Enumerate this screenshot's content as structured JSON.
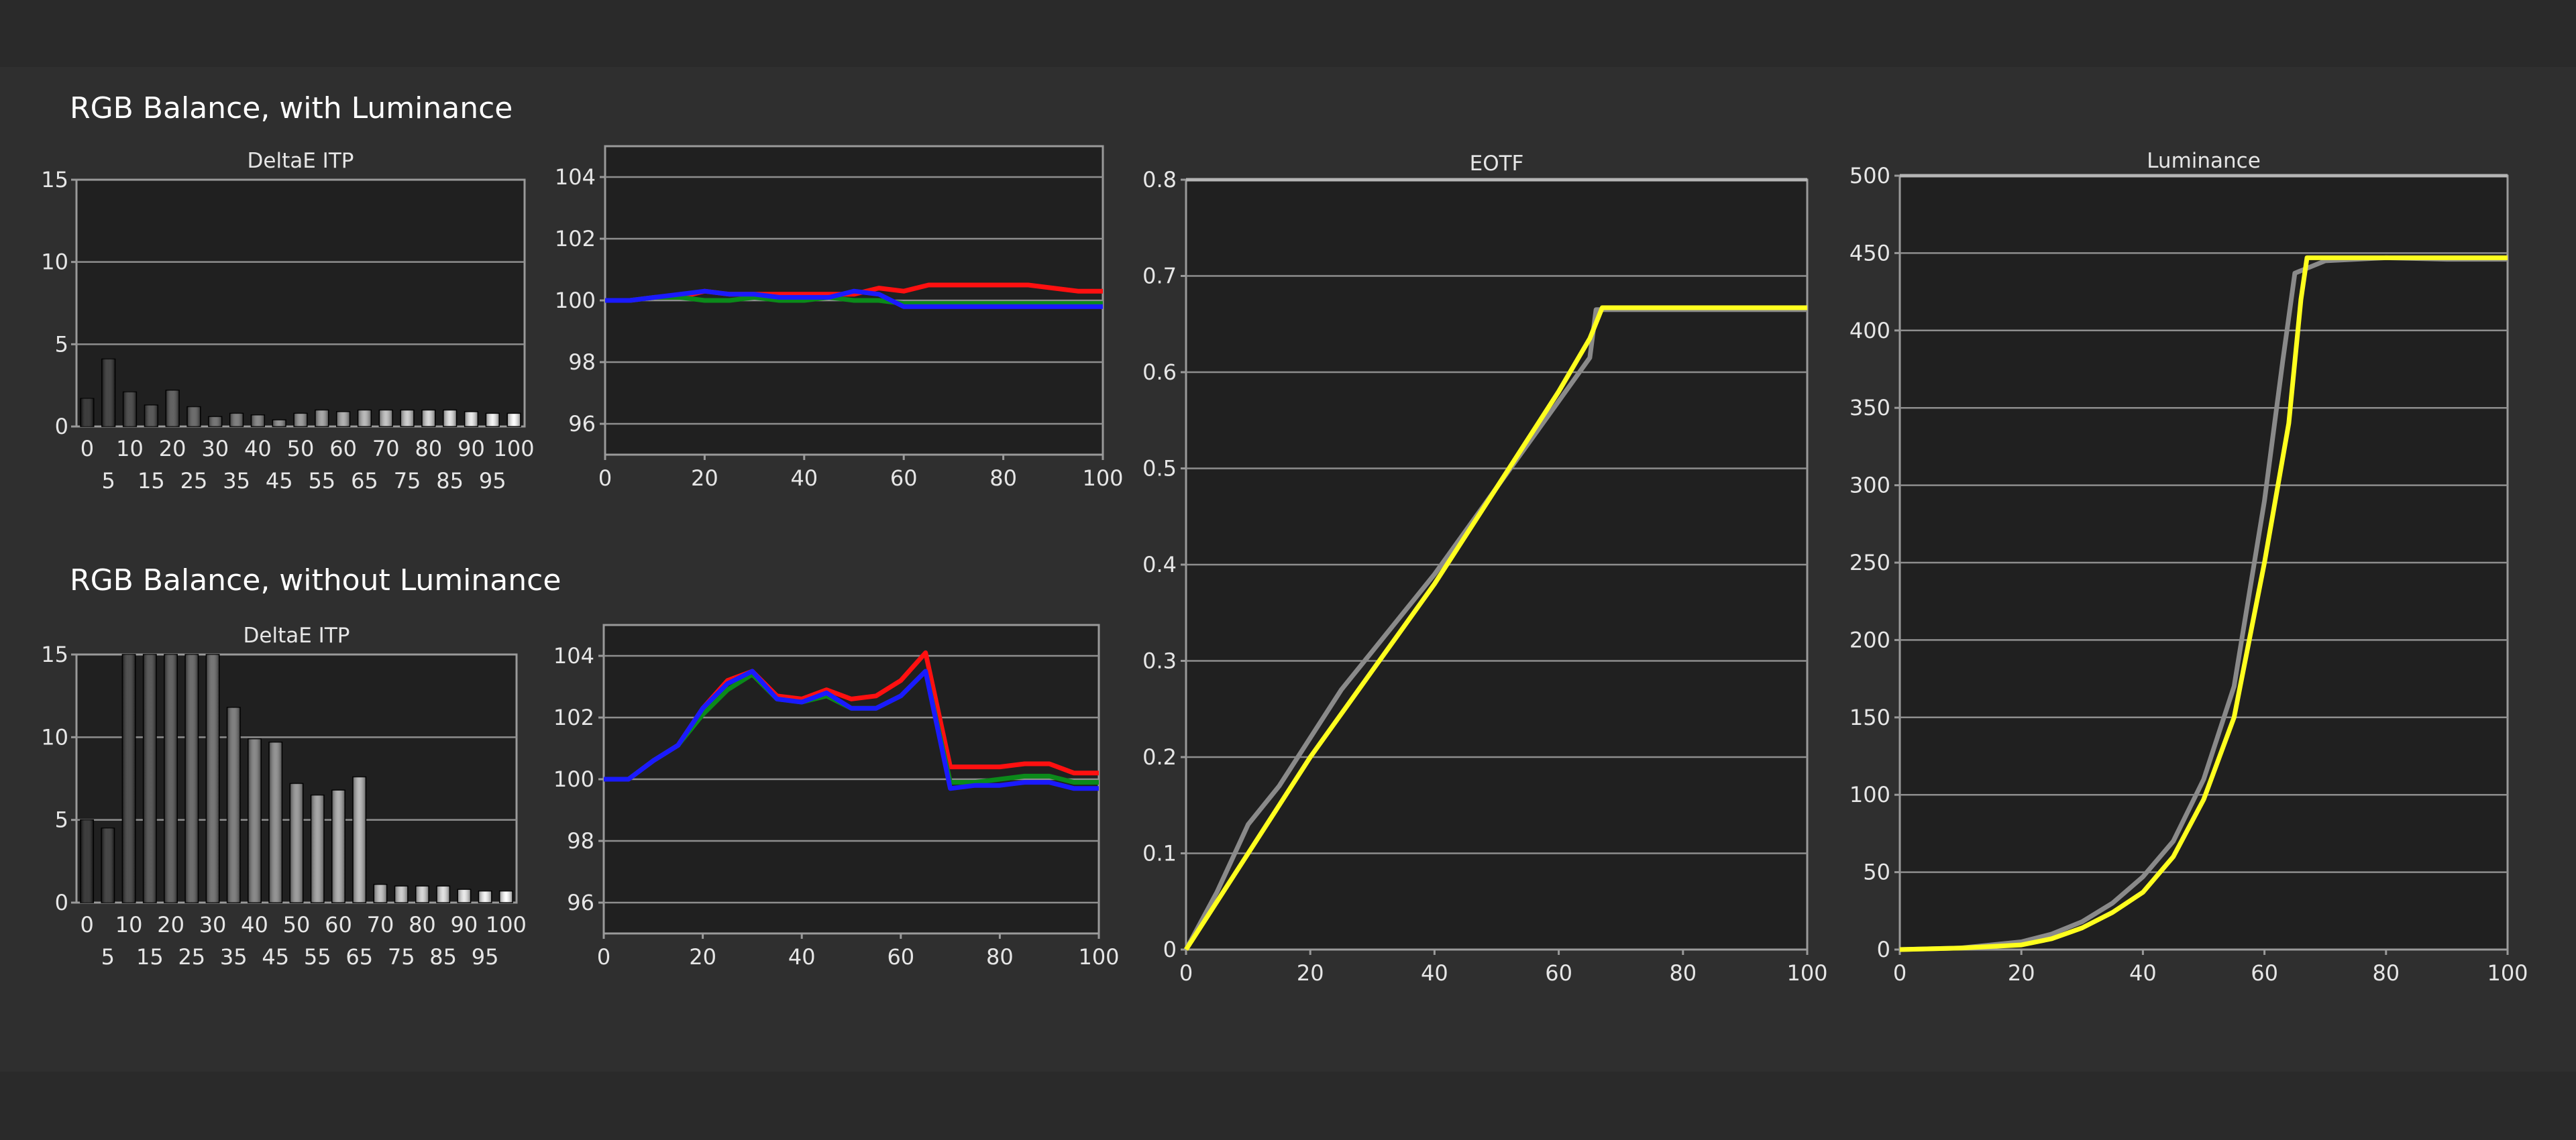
{
  "page": {
    "section_top_title": "RGB Balance, with Luminance",
    "section_bottom_title": "RGB Balance, without Luminance"
  },
  "colors": {
    "red": "#ff1010",
    "green": "#0b8a1a",
    "blue": "#1a1aff",
    "yellow": "#ffff1e",
    "gray": "#8a8a8a"
  },
  "chart_data": [
    {
      "id": "deltae-with",
      "type": "bar",
      "title": "DeltaE ITP",
      "categories": [
        "0",
        "5",
        "10",
        "15",
        "20",
        "25",
        "30",
        "35",
        "40",
        "45",
        "50",
        "55",
        "60",
        "65",
        "70",
        "75",
        "80",
        "85",
        "90",
        "95",
        "100"
      ],
      "values": [
        1.7,
        4.1,
        2.1,
        1.3,
        2.2,
        1.2,
        0.6,
        0.8,
        0.7,
        0.4,
        0.8,
        1.0,
        0.9,
        1.0,
        1.0,
        1.0,
        1.0,
        1.0,
        0.9,
        0.8,
        0.8
      ],
      "ylim": [
        0,
        15
      ],
      "yticks": [
        "0",
        "5",
        "10",
        "15"
      ],
      "xticks_row1": [
        "0",
        "10",
        "20",
        "30",
        "40",
        "50",
        "60",
        "70",
        "80",
        "90",
        "100"
      ],
      "xticks_row2": [
        "5",
        "15",
        "25",
        "35",
        "45",
        "55",
        "65",
        "75",
        "85",
        "95"
      ]
    },
    {
      "id": "rgb-with",
      "type": "line",
      "xlim": [
        0,
        100
      ],
      "ylim": [
        95,
        105
      ],
      "xticks": [
        "0",
        "20",
        "40",
        "60",
        "80",
        "100"
      ],
      "yticks": [
        "96",
        "98",
        "100",
        "102",
        "104"
      ],
      "x": [
        0,
        5,
        10,
        15,
        20,
        25,
        30,
        35,
        40,
        45,
        50,
        55,
        60,
        65,
        70,
        75,
        80,
        85,
        90,
        95,
        100
      ],
      "series": [
        {
          "color": "red",
          "values": [
            100,
            100,
            100.1,
            100.1,
            100.3,
            100.2,
            100.2,
            100.2,
            100.2,
            100.2,
            100.2,
            100.4,
            100.3,
            100.5,
            100.5,
            100.5,
            100.5,
            100.5,
            100.4,
            100.3,
            100.3
          ]
        },
        {
          "color": "green",
          "values": [
            100,
            100,
            100.1,
            100.1,
            100,
            100,
            100.1,
            100,
            100,
            100.1,
            100,
            100,
            99.9,
            99.9,
            99.9,
            99.9,
            99.9,
            99.9,
            99.9,
            99.9,
            99.9
          ]
        },
        {
          "color": "blue",
          "values": [
            100,
            100,
            100.1,
            100.2,
            100.3,
            100.2,
            100.2,
            100.1,
            100.1,
            100.1,
            100.3,
            100.2,
            99.8,
            99.8,
            99.8,
            99.8,
            99.8,
            99.8,
            99.8,
            99.8,
            99.8
          ]
        }
      ]
    },
    {
      "id": "deltae-without",
      "type": "bar",
      "title": "DeltaE ITP",
      "categories": [
        "0",
        "5",
        "10",
        "15",
        "20",
        "25",
        "30",
        "35",
        "40",
        "45",
        "50",
        "55",
        "60",
        "65",
        "70",
        "75",
        "80",
        "85",
        "90",
        "95",
        "100"
      ],
      "values": [
        5.0,
        4.5,
        15,
        15,
        15,
        15,
        15,
        11.8,
        9.9,
        9.7,
        7.2,
        6.5,
        6.8,
        7.6,
        1.1,
        1.0,
        1.0,
        1.0,
        0.8,
        0.7,
        0.7
      ],
      "ylim": [
        0,
        15
      ],
      "yticks": [
        "0",
        "5",
        "10",
        "15"
      ],
      "xticks_row1": [
        "0",
        "10",
        "20",
        "30",
        "40",
        "50",
        "60",
        "70",
        "80",
        "90",
        "100"
      ],
      "xticks_row2": [
        "5",
        "15",
        "25",
        "35",
        "45",
        "55",
        "65",
        "75",
        "85",
        "95"
      ]
    },
    {
      "id": "rgb-without",
      "type": "line",
      "xlim": [
        0,
        100
      ],
      "ylim": [
        95,
        105
      ],
      "xticks": [
        "0",
        "20",
        "40",
        "60",
        "80",
        "100"
      ],
      "yticks": [
        "96",
        "98",
        "100",
        "102",
        "104"
      ],
      "x": [
        0,
        5,
        10,
        15,
        20,
        25,
        30,
        35,
        40,
        45,
        50,
        55,
        60,
        65,
        70,
        75,
        80,
        85,
        90,
        95,
        100
      ],
      "series": [
        {
          "color": "red",
          "values": [
            100,
            100,
            100.6,
            101.1,
            102.3,
            103.2,
            103.5,
            102.7,
            102.6,
            102.9,
            102.6,
            102.7,
            103.2,
            104.1,
            100.4,
            100.4,
            100.4,
            100.5,
            100.5,
            100.2,
            100.2
          ]
        },
        {
          "color": "green",
          "values": [
            100,
            100,
            100.6,
            101.1,
            102.1,
            102.9,
            103.4,
            102.6,
            102.5,
            102.7,
            102.3,
            102.3,
            102.7,
            103.5,
            99.9,
            99.9,
            100,
            100.1,
            100.1,
            99.9,
            99.9
          ]
        },
        {
          "color": "blue",
          "values": [
            100,
            100,
            100.6,
            101.1,
            102.3,
            103.1,
            103.5,
            102.6,
            102.5,
            102.8,
            102.3,
            102.3,
            102.7,
            103.5,
            99.7,
            99.8,
            99.8,
            99.9,
            99.9,
            99.7,
            99.7
          ]
        }
      ]
    },
    {
      "id": "eotf",
      "type": "line",
      "title": "EOTF",
      "xlim": [
        0,
        100
      ],
      "ylim": [
        0,
        0.8
      ],
      "xticks": [
        "0",
        "20",
        "40",
        "60",
        "80",
        "100"
      ],
      "yticks": [
        "0",
        "0.1",
        "0.2",
        "0.3",
        "0.4",
        "0.5",
        "0.6",
        "0.7",
        "0.8"
      ],
      "target": {
        "x": [
          0,
          100
        ],
        "y": [
          0.8,
          0.8
        ]
      },
      "series": [
        {
          "color": "gray",
          "x": [
            0,
            5,
            10,
            15,
            20,
            25,
            30,
            35,
            40,
            45,
            50,
            55,
            60,
            65,
            66,
            70,
            80,
            90,
            100
          ],
          "values": [
            0,
            0.06,
            0.13,
            0.17,
            0.22,
            0.27,
            0.31,
            0.35,
            0.39,
            0.435,
            0.48,
            0.525,
            0.57,
            0.615,
            0.665,
            0.665,
            0.665,
            0.665,
            0.665
          ]
        },
        {
          "color": "yellow",
          "x": [
            0,
            5,
            10,
            15,
            20,
            25,
            30,
            35,
            40,
            45,
            50,
            55,
            60,
            65,
            67,
            70,
            80,
            90,
            100
          ],
          "values": [
            0,
            0.05,
            0.1,
            0.15,
            0.2,
            0.245,
            0.29,
            0.335,
            0.38,
            0.43,
            0.48,
            0.53,
            0.58,
            0.635,
            0.667,
            0.667,
            0.667,
            0.667,
            0.667
          ]
        }
      ]
    },
    {
      "id": "luminance",
      "type": "line",
      "title": "Luminance",
      "xlim": [
        0,
        100
      ],
      "ylim": [
        0,
        500
      ],
      "xticks": [
        "0",
        "20",
        "40",
        "60",
        "80",
        "100"
      ],
      "yticks": [
        "0",
        "50",
        "100",
        "150",
        "200",
        "250",
        "300",
        "350",
        "400",
        "450",
        "500"
      ],
      "target": {
        "x": [
          0,
          100
        ],
        "y": [
          500,
          500
        ]
      },
      "series": [
        {
          "color": "gray",
          "x": [
            0,
            10,
            20,
            25,
            30,
            35,
            40,
            45,
            50,
            55,
            60,
            63,
            65,
            70,
            80,
            90,
            100
          ],
          "values": [
            0,
            1,
            5,
            10,
            18,
            30,
            47,
            70,
            110,
            170,
            290,
            380,
            437,
            445,
            447,
            446,
            446
          ]
        },
        {
          "color": "yellow",
          "x": [
            0,
            10,
            20,
            25,
            30,
            35,
            40,
            45,
            50,
            55,
            60,
            64,
            66,
            67,
            70,
            80,
            90,
            100
          ],
          "values": [
            0,
            1,
            3,
            7,
            14,
            24,
            37,
            60,
            97,
            150,
            250,
            340,
            420,
            447,
            447,
            447,
            447,
            447
          ]
        }
      ]
    }
  ]
}
